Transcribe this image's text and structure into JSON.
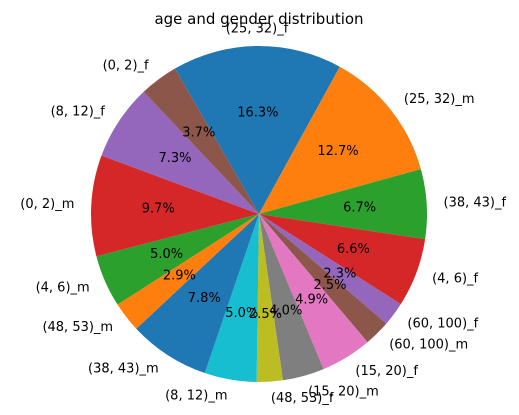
{
  "chart_data": {
    "type": "pie",
    "title": "age and gender distribution",
    "start_angle_deg": 120,
    "direction": "clockwise",
    "slices": [
      {
        "label": "(25, 32)_f",
        "value": 16.3,
        "pct": "16.3%",
        "color": "#1f77b4"
      },
      {
        "label": "(25, 32)_m",
        "value": 12.7,
        "pct": "12.7%",
        "color": "#ff7f0e"
      },
      {
        "label": "(38, 43)_f",
        "value": 6.7,
        "pct": "6.7%",
        "color": "#2ca02c"
      },
      {
        "label": "(4, 6)_f",
        "value": 6.6,
        "pct": "6.6%",
        "color": "#d62728"
      },
      {
        "label": "(60, 100)_f",
        "value": 2.3,
        "pct": "2.3%",
        "color": "#9467bd"
      },
      {
        "label": "(60, 100)_m",
        "value": 2.5,
        "pct": "2.5%",
        "color": "#8c564b"
      },
      {
        "label": "(15, 20)_f",
        "value": 4.9,
        "pct": "4.9%",
        "color": "#e377c2"
      },
      {
        "label": "(15, 20)_m",
        "value": 4.0,
        "pct": "4.0%",
        "color": "#7f7f7f"
      },
      {
        "label": "(48, 53)_f",
        "value": 2.5,
        "pct": "2.5%",
        "color": "#bcbd22"
      },
      {
        "label": "(8, 12)_m",
        "value": 5.0,
        "pct": "5.0%",
        "color": "#17becf"
      },
      {
        "label": "(38, 43)_m",
        "value": 7.8,
        "pct": "7.8%",
        "color": "#1f77b4"
      },
      {
        "label": "(48, 53)_m",
        "value": 2.9,
        "pct": "2.9%",
        "color": "#ff7f0e"
      },
      {
        "label": "(4, 6)_m",
        "value": 5.0,
        "pct": "5.0%",
        "color": "#2ca02c"
      },
      {
        "label": "(0, 2)_m",
        "value": 9.7,
        "pct": "9.7%",
        "color": "#d62728"
      },
      {
        "label": "(8, 12)_f",
        "value": 7.3,
        "pct": "7.3%",
        "color": "#9467bd"
      },
      {
        "label": "(0, 2)_f",
        "value": 3.7,
        "pct": "3.7%",
        "color": "#8c564b"
      }
    ]
  }
}
